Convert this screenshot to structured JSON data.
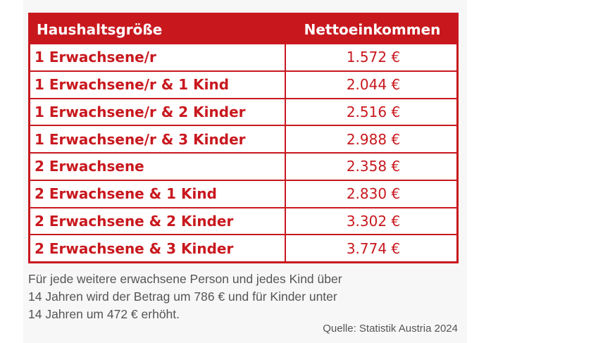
{
  "table": {
    "header": {
      "col1": "Haushaltsgröße",
      "col2": "Nettoeinkommen"
    },
    "rows": [
      {
        "label": "1 Erwachsene/r",
        "value": "1.572  €"
      },
      {
        "label": "1 Erwachsene/r & 1 Kind",
        "value": "2.044 €"
      },
      {
        "label": "1 Erwachsene/r & 2 Kinder",
        "value": "2.516  €"
      },
      {
        "label": "1 Erwachsene/r & 3 Kinder",
        "value": "2.988  €"
      },
      {
        "label": "2 Erwachsene",
        "value": "2.358   €"
      },
      {
        "label": "2 Erwachsene & 1 Kind",
        "value": "2.830  €"
      },
      {
        "label": "2 Erwachsene & 2 Kinder",
        "value": "3.302  €"
      },
      {
        "label": "2 Erwachsene & 3 Kinder",
        "value": "3.774  €"
      }
    ]
  },
  "note": {
    "line1": "Für jede weitere erwachsene Person und jedes Kind über",
    "line2": "14 Jahren wird der Betrag um 786 € und für Kinder unter",
    "line3": "14 Jahren um 472 € erhöht."
  },
  "source": "Quelle: Statistik Austria 2024",
  "colors": {
    "accent": "#c8181e",
    "text_gray": "#555555",
    "panel_bg": "#f7f7f7"
  }
}
